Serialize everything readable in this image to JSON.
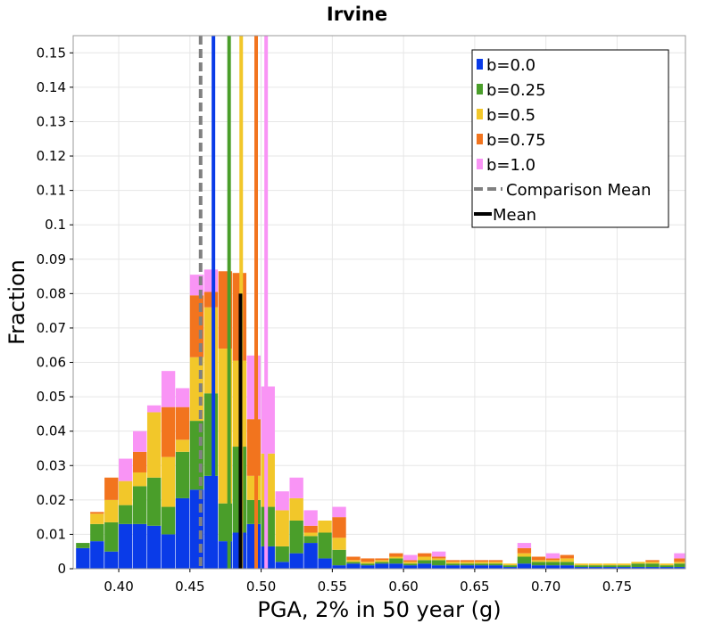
{
  "chart_data": {
    "type": "bar",
    "stacked": true,
    "title": "Irvine",
    "xlabel": "PGA, 2% in 50 year (g)",
    "ylabel": "Fraction",
    "xlim": [
      0.368,
      0.798
    ],
    "ylim": [
      0,
      0.155
    ],
    "bin_width": 0.01,
    "x_ticks": [
      {
        "value": 0.4,
        "label": "0.40"
      },
      {
        "value": 0.45,
        "label": "0.45"
      },
      {
        "value": 0.5,
        "label": "0.50"
      },
      {
        "value": 0.55,
        "label": "0.55"
      },
      {
        "value": 0.6,
        "label": "0.60"
      },
      {
        "value": 0.65,
        "label": "0.65"
      },
      {
        "value": 0.7,
        "label": "0.70"
      },
      {
        "value": 0.75,
        "label": "0.75"
      }
    ],
    "y_ticks": [
      {
        "value": 0,
        "label": "0"
      },
      {
        "value": 0.01,
        "label": "0.01"
      },
      {
        "value": 0.02,
        "label": "0.02"
      },
      {
        "value": 0.03,
        "label": "0.03"
      },
      {
        "value": 0.04,
        "label": "0.04"
      },
      {
        "value": 0.05,
        "label": "0.05"
      },
      {
        "value": 0.06,
        "label": "0.06"
      },
      {
        "value": 0.07,
        "label": "0.07"
      },
      {
        "value": 0.08,
        "label": "0.08"
      },
      {
        "value": 0.09,
        "label": "0.09"
      },
      {
        "value": 0.1,
        "label": "0.1"
      },
      {
        "value": 0.11,
        "label": "0.11"
      },
      {
        "value": 0.12,
        "label": "0.12"
      },
      {
        "value": 0.13,
        "label": "0.13"
      },
      {
        "value": 0.14,
        "label": "0.14"
      },
      {
        "value": 0.15,
        "label": "0.15"
      }
    ],
    "x": [
      0.375,
      0.385,
      0.395,
      0.405,
      0.415,
      0.425,
      0.435,
      0.445,
      0.455,
      0.465,
      0.475,
      0.485,
      0.495,
      0.505,
      0.515,
      0.525,
      0.535,
      0.545,
      0.555,
      0.565,
      0.575,
      0.585,
      0.595,
      0.605,
      0.615,
      0.625,
      0.635,
      0.645,
      0.655,
      0.665,
      0.675,
      0.685,
      0.695,
      0.705,
      0.715,
      0.725,
      0.735,
      0.745,
      0.755,
      0.765,
      0.775,
      0.785,
      0.795
    ],
    "series": [
      {
        "name": "b=0.0",
        "color": "#0a3be8",
        "values": [
          0.006,
          0.008,
          0.005,
          0.013,
          0.013,
          0.0125,
          0.01,
          0.0205,
          0.023,
          0.027,
          0.008,
          0.0105,
          0.013,
          0.0065,
          0.002,
          0.0045,
          0.0075,
          0.003,
          0.001,
          0.0015,
          0.001,
          0.0015,
          0.0015,
          0.001,
          0.0015,
          0.001,
          0.001,
          0.001,
          0.001,
          0.001,
          0.0005,
          0.0015,
          0.001,
          0.001,
          0.001,
          0.0005,
          0.0005,
          0.0005,
          0.0005,
          0.0005,
          0.0005,
          0.0005,
          0.0005
        ]
      },
      {
        "name": "b=0.25",
        "color": "#4a9e2a",
        "values": [
          0.0015,
          0.005,
          0.0085,
          0.0055,
          0.011,
          0.014,
          0.008,
          0.0135,
          0.02,
          0.024,
          0.011,
          0.025,
          0.007,
          0.0115,
          0.0045,
          0.0095,
          0.002,
          0.0075,
          0.0045,
          0.0005,
          0.0005,
          0.0005,
          0.0015,
          0.0005,
          0.001,
          0.0015,
          0.0005,
          0.0005,
          0.0005,
          0.0005,
          0.0005,
          0.002,
          0.001,
          0.001,
          0.001,
          0.0005,
          0.0005,
          0.0005,
          0.0005,
          0.001,
          0.001,
          0.0005,
          0.001
        ]
      },
      {
        "name": "b=0.5",
        "color": "#f2c72a",
        "values": [
          0.0,
          0.003,
          0.0065,
          0.007,
          0.004,
          0.019,
          0.0145,
          0.0035,
          0.0185,
          0.025,
          0.045,
          0.025,
          0.007,
          0.0155,
          0.0105,
          0.0065,
          0.001,
          0.0035,
          0.0035,
          0.0005,
          0.0005,
          0.0005,
          0.0005,
          0.0005,
          0.001,
          0.0005,
          0.0005,
          0.0005,
          0.0005,
          0.0005,
          0.0005,
          0.001,
          0.0005,
          0.0005,
          0.001,
          0.0005,
          0.0005,
          0.0005,
          0.0005,
          0.0005,
          0.0005,
          0.0005,
          0.0005
        ]
      },
      {
        "name": "b=0.75",
        "color": "#f2741e",
        "values": [
          0.0,
          0.0005,
          0.0065,
          0.0,
          0.006,
          0.0,
          0.0145,
          0.0095,
          0.018,
          0.0045,
          0.0225,
          0.0255,
          0.0165,
          0.0,
          0.0,
          0.0,
          0.002,
          0.0,
          0.006,
          0.001,
          0.001,
          0.0005,
          0.001,
          0.0005,
          0.001,
          0.0005,
          0.0005,
          0.0005,
          0.0005,
          0.0005,
          0.0,
          0.0015,
          0.001,
          0.0005,
          0.001,
          0.0,
          0.0,
          0.0,
          0.0,
          0.0,
          0.0005,
          0.0,
          0.001
        ]
      },
      {
        "name": "b=1.0",
        "color": "#f994f5",
        "values": [
          0.0,
          0.0,
          0.0,
          0.0065,
          0.006,
          0.002,
          0.0105,
          0.0055,
          0.006,
          0.0065,
          0.0,
          0.0,
          0.0185,
          0.0195,
          0.0055,
          0.006,
          0.0045,
          0.0,
          0.003,
          0.0,
          0.0,
          0.0,
          0.0,
          0.0015,
          0.0,
          0.0015,
          0.0,
          0.0,
          0.0,
          0.0,
          0.0,
          0.0015,
          0.0,
          0.0015,
          0.0,
          0.0,
          0.0,
          0.0,
          0.0,
          0.0,
          0.0,
          0.0,
          0.0015
        ]
      }
    ],
    "mean_lines": [
      {
        "name": "b=0.0",
        "value": 0.4665,
        "color": "#0a3be8",
        "style": "solid"
      },
      {
        "name": "b=0.25",
        "value": 0.4775,
        "color": "#4a9e2a",
        "style": "solid"
      },
      {
        "name": "b=0.5",
        "value": 0.486,
        "color": "#f2c72a",
        "style": "solid"
      },
      {
        "name": "b=0.75",
        "value": 0.4965,
        "color": "#f2741e",
        "style": "solid"
      },
      {
        "name": "b=1.0",
        "value": 0.5035,
        "color": "#f994f5",
        "style": "solid"
      },
      {
        "name": "Comparison Mean",
        "value": 0.4575,
        "color": "#808080",
        "style": "dashed"
      },
      {
        "name": "Mean",
        "value": 0.4855,
        "color": "#000000",
        "style": "solid",
        "top": 0.08
      }
    ],
    "legend": {
      "placement": "top-right",
      "entries": [
        {
          "label": "b=0.0",
          "color": "#0a3be8",
          "kind": "box"
        },
        {
          "label": "b=0.25",
          "color": "#4a9e2a",
          "kind": "box"
        },
        {
          "label": "b=0.5",
          "color": "#f2c72a",
          "kind": "box"
        },
        {
          "label": "b=0.75",
          "color": "#f2741e",
          "kind": "box"
        },
        {
          "label": "b=1.0",
          "color": "#f994f5",
          "kind": "box"
        },
        {
          "label": "Comparison Mean",
          "color": "#808080",
          "kind": "dashed"
        },
        {
          "label": "Mean",
          "color": "#000000",
          "kind": "line"
        }
      ]
    },
    "grid": true
  }
}
